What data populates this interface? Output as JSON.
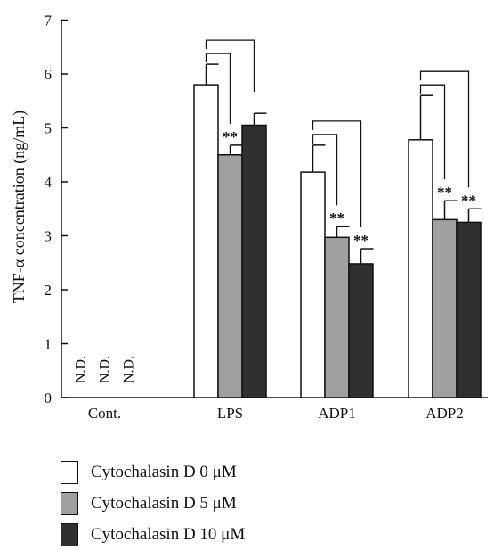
{
  "chart_data": {
    "type": "bar",
    "ylabel": "TNF-α concentration (ng/mL)",
    "ylim": [
      0,
      7
    ],
    "yticks": [
      "0",
      "1",
      "2",
      "3",
      "4",
      "5",
      "6",
      "7"
    ],
    "categories": [
      "Cont.",
      "LPS",
      "ADP1",
      "ADP2"
    ],
    "nd_label": "N.D.",
    "sig_label": "**",
    "series": [
      {
        "name": "Cytochalasin D 0 μM",
        "color": "#ffffff",
        "values": [
          null,
          5.8,
          4.18,
          4.78
        ],
        "errors": [
          null,
          0.38,
          0.5,
          0.82
        ],
        "significance": [
          false,
          false,
          false,
          false
        ]
      },
      {
        "name": "Cytochalasin D 5 μM",
        "color": "#a0a0a0",
        "values": [
          null,
          4.5,
          2.97,
          3.3
        ],
        "errors": [
          null,
          0.18,
          0.2,
          0.35
        ],
        "significance": [
          false,
          true,
          true,
          true
        ]
      },
      {
        "name": "Cytochalasin D 10 μM",
        "color": "#303030",
        "values": [
          null,
          5.05,
          2.48,
          3.25
        ],
        "errors": [
          null,
          0.22,
          0.28,
          0.25
        ],
        "significance": [
          false,
          false,
          true,
          true
        ]
      }
    ],
    "grid": false,
    "legend_position": "bottom-left"
  }
}
